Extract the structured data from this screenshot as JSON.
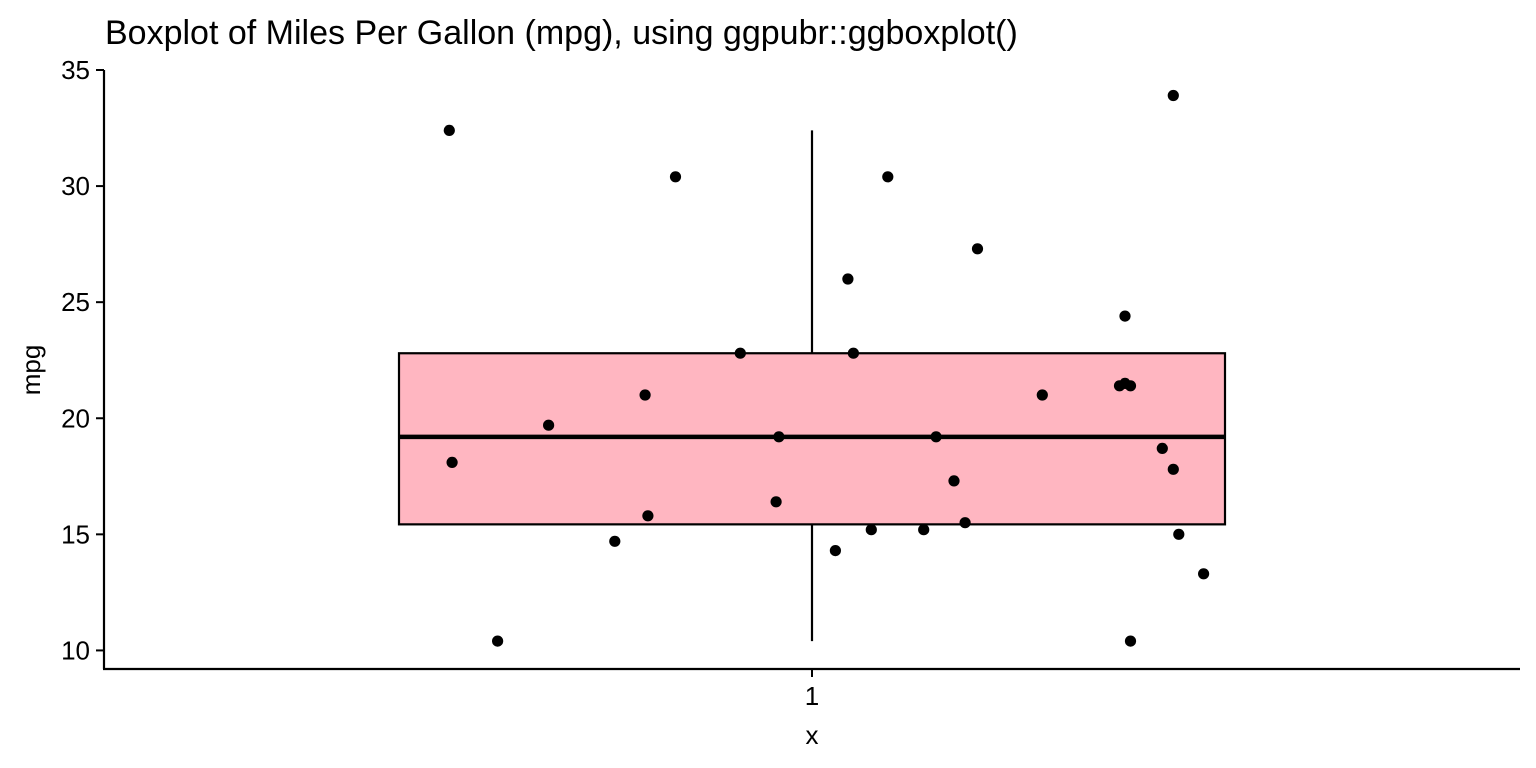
{
  "chart_data": {
    "type": "boxplot",
    "title": "Boxplot of Miles Per Gallon (mpg), using ggpubr::ggboxplot()",
    "xlabel": "x",
    "ylabel": "mpg",
    "categories": [
      "1"
    ],
    "ylim": [
      9.2,
      35
    ],
    "yticks": [
      10,
      15,
      20,
      25,
      30,
      35
    ],
    "box": {
      "min": 10.4,
      "q1": 15.43,
      "median": 19.2,
      "q3": 22.8,
      "max": 32.4,
      "fill": "#FFB6C1",
      "stroke": "#000000"
    },
    "points": [
      {
        "x": 0.737,
        "y": 32.4
      },
      {
        "x": 0.901,
        "y": 30.4
      },
      {
        "x": 1.055,
        "y": 30.4
      },
      {
        "x": 1.262,
        "y": 33.9
      },
      {
        "x": 1.12,
        "y": 27.3
      },
      {
        "x": 1.026,
        "y": 26.0
      },
      {
        "x": 1.227,
        "y": 24.4
      },
      {
        "x": 0.948,
        "y": 22.8
      },
      {
        "x": 1.03,
        "y": 22.8
      },
      {
        "x": 0.879,
        "y": 21.0
      },
      {
        "x": 1.167,
        "y": 21.0
      },
      {
        "x": 1.223,
        "y": 21.4
      },
      {
        "x": 1.231,
        "y": 21.4
      },
      {
        "x": 1.227,
        "y": 21.5
      },
      {
        "x": 0.809,
        "y": 19.7
      },
      {
        "x": 0.976,
        "y": 19.2
      },
      {
        "x": 1.09,
        "y": 19.2
      },
      {
        "x": 1.254,
        "y": 18.7
      },
      {
        "x": 0.739,
        "y": 18.1
      },
      {
        "x": 1.262,
        "y": 17.8
      },
      {
        "x": 1.103,
        "y": 17.3
      },
      {
        "x": 0.974,
        "y": 16.4
      },
      {
        "x": 0.881,
        "y": 15.8
      },
      {
        "x": 1.111,
        "y": 15.5
      },
      {
        "x": 1.043,
        "y": 15.2
      },
      {
        "x": 1.081,
        "y": 15.2
      },
      {
        "x": 1.266,
        "y": 15.0
      },
      {
        "x": 0.857,
        "y": 14.7
      },
      {
        "x": 1.017,
        "y": 14.3
      },
      {
        "x": 1.284,
        "y": 13.3
      },
      {
        "x": 0.772,
        "y": 10.4
      },
      {
        "x": 1.231,
        "y": 10.4
      }
    ],
    "point_color": "#000000",
    "grid": false,
    "legend": "none"
  }
}
